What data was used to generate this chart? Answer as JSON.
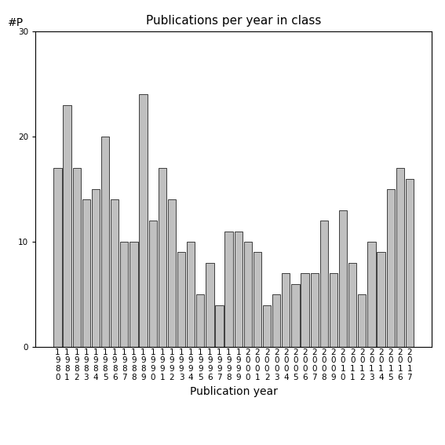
{
  "title": "Publications per year in class",
  "xlabel": "Publication year",
  "ylabel": "#P",
  "years": [
    1980,
    1981,
    1982,
    1983,
    1984,
    1985,
    1986,
    1987,
    1988,
    1989,
    1990,
    1991,
    1992,
    1993,
    1994,
    1995,
    1996,
    1997,
    1998,
    1999,
    2000,
    2001,
    2002,
    2003,
    2004,
    2005,
    2006,
    2007,
    2008,
    2009,
    2010,
    2011,
    2012,
    2013,
    2014,
    2015,
    2016,
    2017
  ],
  "values": [
    17,
    23,
    17,
    14,
    15,
    20,
    14,
    10,
    10,
    24,
    12,
    17,
    14,
    9,
    10,
    5,
    8,
    4,
    11,
    11,
    10,
    9,
    4,
    5,
    7,
    6,
    7,
    7,
    12,
    7,
    13,
    8,
    5,
    10,
    9,
    15,
    17,
    16
  ],
  "bar_color": "#c0c0c0",
  "bar_edge_color": "#000000",
  "ylim": [
    0,
    30
  ],
  "yticks": [
    0,
    10,
    20,
    30
  ],
  "background_color": "#ffffff",
  "title_fontsize": 11,
  "label_fontsize": 10,
  "tick_fontsize": 7.5
}
